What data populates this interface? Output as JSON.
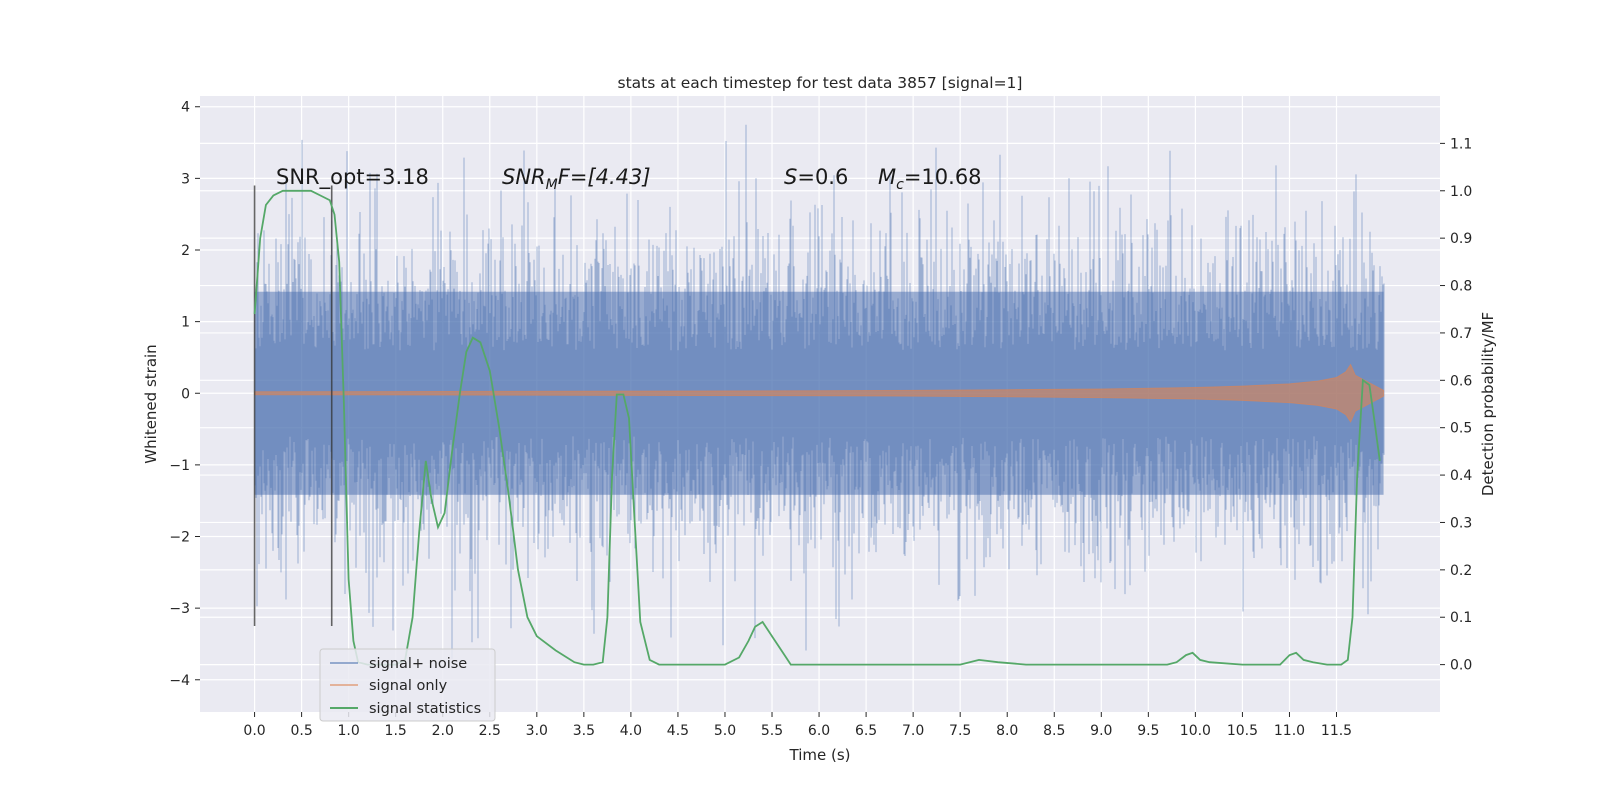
{
  "chart_data": {
    "type": "line",
    "title": "stats at each timestep for test data 3857 [signal=1]",
    "xlabel": "Time (s)",
    "ylabel": "Whitened strain",
    "y2label": "Detection probability/MF",
    "xlim": [
      -0.58,
      12.6
    ],
    "ylim": [
      -4.45,
      4.15
    ],
    "y2lim": [
      -0.1,
      1.2
    ],
    "xticks": [
      0.0,
      0.5,
      1.0,
      1.5,
      2.0,
      2.5,
      3.0,
      3.5,
      4.0,
      4.5,
      5.0,
      5.5,
      6.0,
      6.5,
      7.0,
      7.5,
      8.0,
      8.5,
      9.0,
      9.5,
      10.0,
      10.5,
      11.0,
      11.5
    ],
    "xtick_labels": [
      "0.0",
      "0.5",
      "1.0",
      "1.5",
      "2.0",
      "2.5",
      "3.0",
      "3.5",
      "4.0",
      "4.5",
      "5.0",
      "5.5",
      "6.0",
      "6.5",
      "7.0",
      "7.5",
      "8.0",
      "8.5",
      "9.0",
      "9.5",
      "10.0",
      "10.5",
      "11.0",
      "11.5"
    ],
    "yticks": [
      -4,
      -3,
      -2,
      -1,
      0,
      1,
      2,
      3,
      4
    ],
    "ytick_labels": [
      "−4",
      "−3",
      "−2",
      "−1",
      "0",
      "1",
      "2",
      "3",
      "4"
    ],
    "y2ticks": [
      0.0,
      0.1,
      0.2,
      0.3,
      0.4,
      0.5,
      0.6,
      0.7,
      0.8,
      0.9,
      1.0,
      1.1
    ],
    "y2tick_labels": [
      "0.0",
      "0.1",
      "0.2",
      "0.3",
      "0.4",
      "0.5",
      "0.6",
      "0.7",
      "0.8",
      "0.9",
      "1.0",
      "1.1"
    ],
    "grid": true,
    "legend_position": "lower-left",
    "annotations": {
      "snr_opt": "SNR_opt=3.18",
      "snr_mf_base": "SNR",
      "snr_mf_sub": "M",
      "snr_mf_rest": "F=[4.43]",
      "s_var": "S",
      "s_val": "=0.6",
      "mc_base": "M",
      "mc_sub": "c",
      "mc_val": "=10.68"
    },
    "vertical_markers": [
      {
        "x": 0.0,
        "ymin": -3.25,
        "ymax": 2.9
      },
      {
        "x": 0.82,
        "ymin": -3.25,
        "ymax": 2.9
      }
    ],
    "series": [
      {
        "name": "signal+ noise",
        "color": "#4c72b0",
        "axis": "left",
        "x_range": [
          0.0,
          12.0
        ],
        "typical_amplitude": 1.05,
        "peak_range": [
          -4.1,
          3.75
        ]
      },
      {
        "name": "signal only",
        "color": "#dd8452",
        "axis": "left",
        "envelope_x": [
          0.0,
          2.0,
          4.0,
          6.0,
          7.0,
          8.0,
          9.0,
          10.0,
          10.5,
          11.0,
          11.3,
          11.5,
          11.6,
          11.65,
          11.7,
          12.0
        ],
        "envelope_y": [
          0.02,
          0.025,
          0.03,
          0.035,
          0.04,
          0.05,
          0.06,
          0.08,
          0.1,
          0.13,
          0.17,
          0.22,
          0.3,
          0.4,
          0.25,
          0.04
        ]
      },
      {
        "name": "signal statistics",
        "color": "#55a868",
        "axis": "right",
        "x": [
          0.0,
          0.06,
          0.12,
          0.2,
          0.3,
          0.45,
          0.6,
          0.7,
          0.8,
          0.85,
          0.9,
          0.95,
          1.0,
          1.05,
          1.1,
          1.2,
          1.4,
          1.5,
          1.6,
          1.68,
          1.75,
          1.82,
          1.88,
          1.95,
          2.02,
          2.1,
          2.18,
          2.25,
          2.32,
          2.4,
          2.5,
          2.6,
          2.7,
          2.8,
          2.9,
          3.0,
          3.2,
          3.4,
          3.5,
          3.6,
          3.7,
          3.75,
          3.8,
          3.85,
          3.92,
          3.98,
          4.04,
          4.1,
          4.2,
          4.3,
          4.4,
          4.5,
          5.0,
          5.15,
          5.25,
          5.32,
          5.4,
          5.5,
          5.6,
          5.7,
          6.0,
          6.5,
          7.0,
          7.5,
          7.7,
          7.9,
          8.2,
          8.5,
          9.0,
          9.5,
          9.7,
          9.8,
          9.9,
          9.97,
          10.05,
          10.15,
          10.5,
          10.9,
          11.0,
          11.07,
          11.15,
          11.25,
          11.4,
          11.55,
          11.62,
          11.67,
          11.72,
          11.78,
          11.85,
          11.9,
          11.96
        ],
        "y": [
          0.74,
          0.9,
          0.97,
          0.99,
          1.0,
          1.0,
          1.0,
          0.99,
          0.98,
          0.95,
          0.85,
          0.55,
          0.18,
          0.05,
          0.005,
          0.0,
          0.0,
          0.0,
          0.01,
          0.1,
          0.28,
          0.43,
          0.35,
          0.29,
          0.32,
          0.45,
          0.57,
          0.66,
          0.69,
          0.68,
          0.62,
          0.5,
          0.36,
          0.2,
          0.1,
          0.06,
          0.03,
          0.005,
          0.0,
          0.0,
          0.005,
          0.1,
          0.4,
          0.57,
          0.57,
          0.52,
          0.3,
          0.09,
          0.01,
          0.0,
          0.0,
          0.0,
          0.0,
          0.015,
          0.05,
          0.08,
          0.09,
          0.06,
          0.03,
          0.0,
          0.0,
          0.0,
          0.0,
          0.0,
          0.01,
          0.005,
          0.0,
          0.0,
          0.0,
          0.0,
          0.0,
          0.005,
          0.02,
          0.025,
          0.01,
          0.005,
          0.0,
          0.0,
          0.02,
          0.025,
          0.01,
          0.005,
          0.0,
          0.0,
          0.01,
          0.1,
          0.4,
          0.6,
          0.59,
          0.52,
          0.43
        ]
      }
    ]
  }
}
